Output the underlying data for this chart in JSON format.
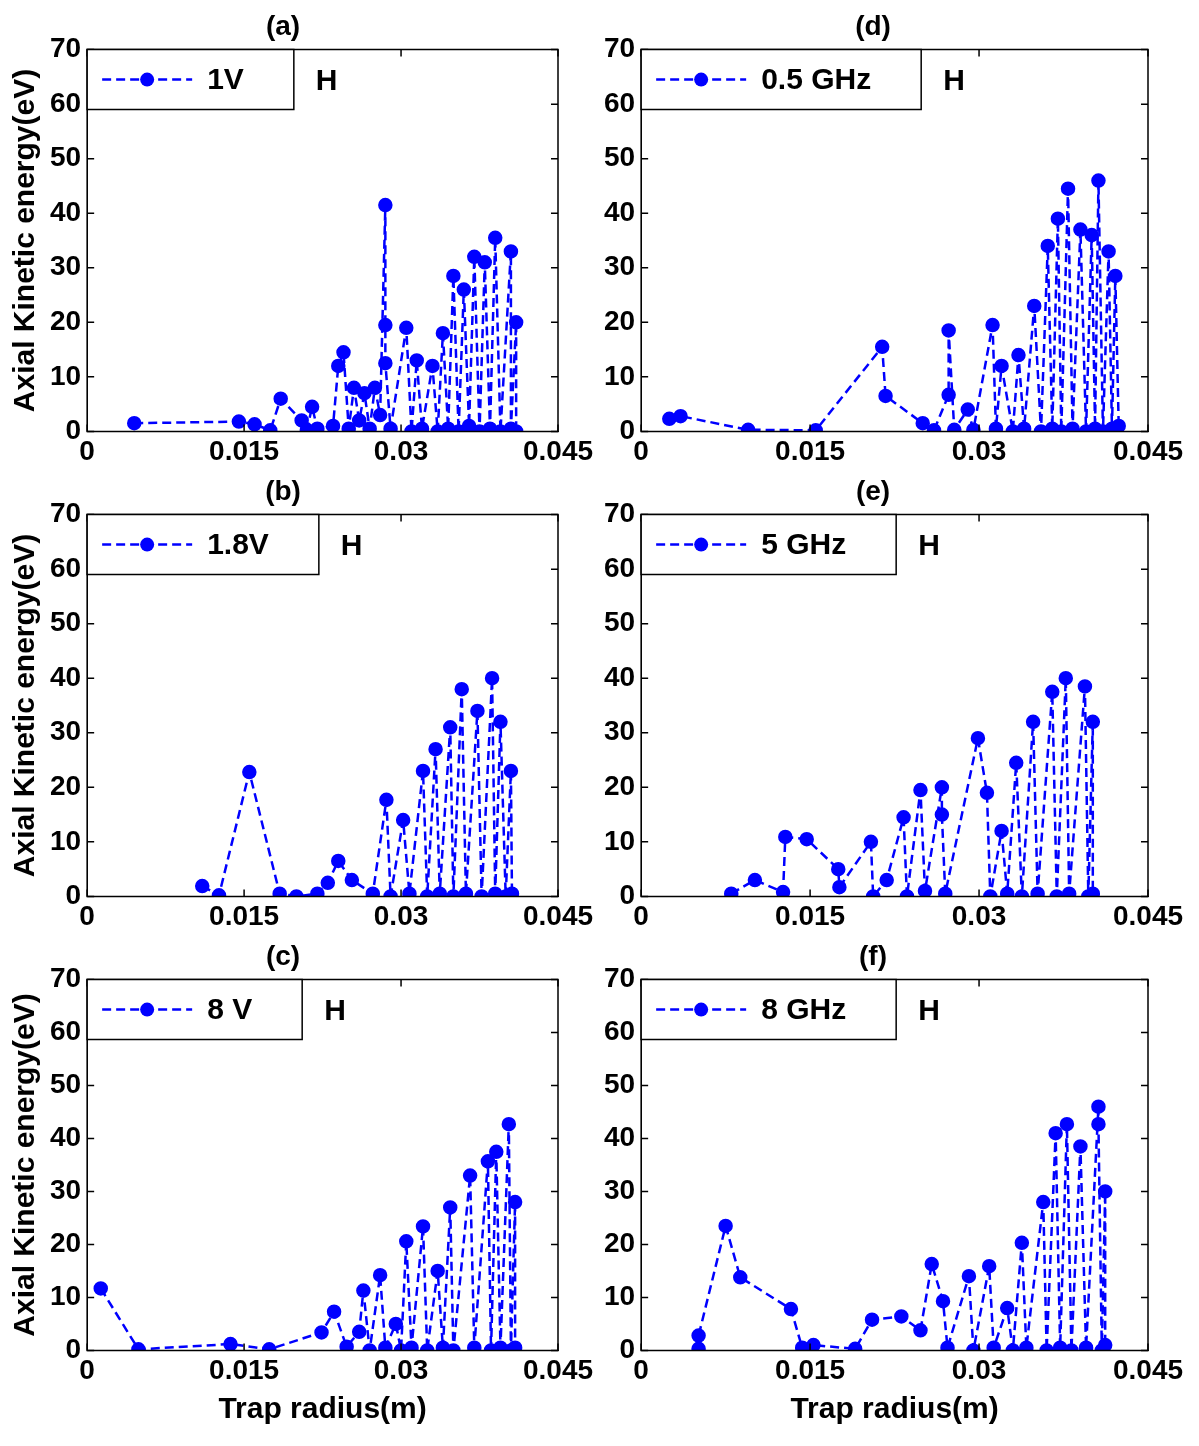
{
  "chart_data": [
    {
      "type": "line",
      "title": "(a)",
      "ylabel": "Axial Kinetic energy(eV)",
      "annotations": [
        "H"
      ],
      "legend": "top left",
      "marker": "circle",
      "line_style": "dashed",
      "xlim": [
        0,
        0.045
      ],
      "xticks": [
        0,
        0.015,
        0.03,
        0.045
      ],
      "ylim": [
        0,
        70
      ],
      "yticks": [
        0,
        10,
        20,
        30,
        40,
        50,
        60,
        70
      ],
      "x": [
        0.0045,
        0.0145,
        0.016,
        0.0175,
        0.0185,
        0.0205,
        0.021,
        0.0215,
        0.022,
        0.0235,
        0.024,
        0.0245,
        0.025,
        0.0255,
        0.026,
        0.0265,
        0.027,
        0.0275,
        0.028,
        0.0285,
        0.0285,
        0.0285,
        0.029,
        0.0305,
        0.031,
        0.0315,
        0.032,
        0.033,
        0.0335,
        0.034,
        0.0345,
        0.035,
        0.0355,
        0.036,
        0.0365,
        0.037,
        0.0375,
        0.038,
        0.0385,
        0.039,
        0.0395,
        0.0405,
        0.0405,
        0.041,
        0.041
      ],
      "series": [
        {
          "name": "1V",
          "color": "#0000ff",
          "values": [
            1.5,
            1.8,
            1.3,
            0.2,
            6,
            2,
            0.3,
            4.5,
            0.5,
            1,
            12,
            14.5,
            0.5,
            8,
            2,
            7,
            0.5,
            8,
            3,
            41.5,
            19.5,
            12.5,
            0.5,
            19,
            0,
            13,
            0.5,
            12,
            0,
            18,
            0.5,
            28.5,
            0,
            26,
            1,
            32,
            0,
            31,
            0.5,
            35.5,
            0,
            33,
            0.5,
            20,
            0
          ]
        }
      ]
    },
    {
      "type": "line",
      "title": "(d)",
      "annotations": [
        "H"
      ],
      "legend": "top left",
      "marker": "circle",
      "line_style": "dashed",
      "xlim": [
        0,
        0.045
      ],
      "xticks": [
        0,
        0.015,
        0.03,
        0.045
      ],
      "ylim": [
        0,
        70
      ],
      "yticks": [
        0,
        10,
        20,
        30,
        40,
        50,
        60,
        70
      ],
      "x": [
        0.0025,
        0.0035,
        0.0095,
        0.0155,
        0.0214,
        0.0217,
        0.025,
        0.026,
        0.0273,
        0.0273,
        0.0278,
        0.029,
        0.0295,
        0.0312,
        0.0315,
        0.032,
        0.033,
        0.0335,
        0.034,
        0.0349,
        0.0355,
        0.0361,
        0.0365,
        0.037,
        0.0373,
        0.0379,
        0.0383,
        0.039,
        0.0395,
        0.04,
        0.0403,
        0.0406,
        0.041,
        0.0415,
        0.0418,
        0.0421,
        0.0424
      ],
      "series": [
        {
          "name": "0.5 GHz",
          "color": "#0000ff",
          "values": [
            2.3,
            2.8,
            0.3,
            0.2,
            15.5,
            6.5,
            1.5,
            0.2,
            6.7,
            18.5,
            0.3,
            4,
            0.3,
            19.5,
            0.5,
            12,
            0,
            14,
            0.5,
            23,
            0,
            34,
            0.5,
            39,
            0,
            44.5,
            0.5,
            37,
            0,
            36,
            0.5,
            46,
            0,
            33,
            0.5,
            28.5,
            1
          ]
        }
      ]
    },
    {
      "type": "line",
      "title": "(b)",
      "ylabel": "Axial Kinetic energy(eV)",
      "annotations": [
        "H"
      ],
      "legend": "top left",
      "marker": "circle",
      "line_style": "dashed",
      "xlim": [
        0,
        0.045
      ],
      "xticks": [
        0,
        0.015,
        0.03,
        0.045
      ],
      "ylim": [
        0,
        70
      ],
      "yticks": [
        0,
        10,
        20,
        30,
        40,
        50,
        60,
        70
      ],
      "x": [
        0.011,
        0.0126,
        0.0155,
        0.0184,
        0.02,
        0.022,
        0.023,
        0.024,
        0.0253,
        0.0273,
        0.0286,
        0.029,
        0.0302,
        0.0308,
        0.0321,
        0.0325,
        0.0333,
        0.0337,
        0.0347,
        0.035,
        0.0358,
        0.0362,
        0.0373,
        0.0377,
        0.0387,
        0.039,
        0.0395,
        0.04,
        0.0405,
        0.0406
      ],
      "series": [
        {
          "name": "1.8V",
          "color": "#0000ff",
          "values": [
            1.9,
            0.2,
            22.8,
            0.5,
            0,
            0.5,
            2.5,
            6.5,
            3,
            0.5,
            17.7,
            0,
            14,
            0.5,
            23,
            0,
            27,
            0.5,
            31,
            0,
            38,
            0.5,
            34,
            0,
            40,
            0.5,
            32,
            0,
            23,
            0.5
          ]
        }
      ]
    },
    {
      "type": "line",
      "title": "(e)",
      "annotations": [
        "H"
      ],
      "legend": "top left",
      "marker": "circle",
      "line_style": "dashed",
      "xlim": [
        0,
        0.045
      ],
      "xticks": [
        0,
        0.015,
        0.03,
        0.045
      ],
      "ylim": [
        0,
        70
      ],
      "yticks": [
        0,
        10,
        20,
        30,
        40,
        50,
        60,
        70
      ],
      "x": [
        0.008,
        0.0101,
        0.0126,
        0.0128,
        0.0147,
        0.0175,
        0.0176,
        0.0204,
        0.0206,
        0.0218,
        0.0233,
        0.0236,
        0.0248,
        0.0252,
        0.0267,
        0.0267,
        0.027,
        0.0299,
        0.0307,
        0.031,
        0.032,
        0.0325,
        0.0333,
        0.0338,
        0.0348,
        0.0352,
        0.0365,
        0.0369,
        0.0377,
        0.038,
        0.0394,
        0.0397,
        0.0401,
        0.0401
      ],
      "series": [
        {
          "name": "5 GHz",
          "color": "#0000ff",
          "values": [
            0.5,
            3,
            0.8,
            10.9,
            10.5,
            5,
            1.7,
            10,
            0,
            3,
            14.5,
            0,
            19.5,
            1,
            20,
            15,
            0.5,
            29,
            19,
            0,
            12,
            0.5,
            24.5,
            0,
            32,
            0.5,
            37.5,
            0,
            40,
            0.5,
            38.5,
            0,
            32,
            0.5
          ]
        }
      ]
    },
    {
      "type": "line",
      "title": "(c)",
      "xlabel": "Trap radius(m)",
      "ylabel": "Axial Kinetic energy(eV)",
      "annotations": [
        "H"
      ],
      "legend": "top left",
      "marker": "circle",
      "line_style": "dashed",
      "xlim": [
        0,
        0.045
      ],
      "xticks": [
        0,
        0.015,
        0.03,
        0.045
      ],
      "ylim": [
        0,
        70
      ],
      "yticks": [
        0,
        10,
        20,
        30,
        40,
        50,
        60,
        70
      ],
      "x": [
        0.0013,
        0.0049,
        0.0137,
        0.0174,
        0.0224,
        0.0236,
        0.0248,
        0.026,
        0.0264,
        0.027,
        0.028,
        0.0285,
        0.0295,
        0.03,
        0.0305,
        0.031,
        0.0321,
        0.0325,
        0.0335,
        0.034,
        0.0347,
        0.035,
        0.0366,
        0.037,
        0.0383,
        0.0386,
        0.0391,
        0.0395,
        0.0403,
        0.0405,
        0.0409,
        0.0409
      ],
      "series": [
        {
          "name": "8 V",
          "color": "#0000ff",
          "values": [
            11.7,
            0.2,
            1.2,
            0.2,
            3.4,
            7.3,
            0.7,
            3.5,
            11.3,
            0,
            14.2,
            0.5,
            5,
            0,
            20.6,
            0.5,
            23.4,
            0,
            15,
            0.5,
            27,
            0,
            33,
            0.5,
            35.7,
            0,
            37.5,
            0.5,
            42.7,
            0,
            28,
            0.5
          ]
        }
      ]
    },
    {
      "type": "line",
      "title": "(f)",
      "xlabel": "Trap radius(m)",
      "annotations": [
        "H"
      ],
      "legend": "top left",
      "marker": "circle",
      "line_style": "dashed",
      "xlim": [
        0,
        0.045
      ],
      "xticks": [
        0,
        0.015,
        0.03,
        0.045
      ],
      "ylim": [
        0,
        70
      ],
      "yticks": [
        0,
        10,
        20,
        30,
        40,
        50,
        60,
        70
      ],
      "x": [
        0.0051,
        0.0051,
        0.0075,
        0.0088,
        0.0133,
        0.0143,
        0.0153,
        0.019,
        0.0205,
        0.0231,
        0.0248,
        0.0258,
        0.0268,
        0.0272,
        0.0291,
        0.0295,
        0.0309,
        0.0313,
        0.0325,
        0.033,
        0.0338,
        0.0342,
        0.0357,
        0.036,
        0.0368,
        0.0372,
        0.0378,
        0.0382,
        0.039,
        0.0395,
        0.0406,
        0.0406,
        0.0409,
        0.0412,
        0.0412
      ],
      "series": [
        {
          "name": "8 GHz",
          "color": "#0000ff",
          "values": [
            0.3,
            2.8,
            23.5,
            13.8,
            7.8,
            0.5,
            1,
            0.3,
            5.8,
            6.4,
            3.8,
            16.3,
            9.3,
            0.5,
            14,
            0,
            15.9,
            0.5,
            8,
            0,
            20.3,
            0.5,
            28,
            0,
            41,
            0.5,
            42.7,
            0,
            38.5,
            0.5,
            46,
            42.7,
            0,
            30,
            1
          ]
        }
      ]
    }
  ]
}
